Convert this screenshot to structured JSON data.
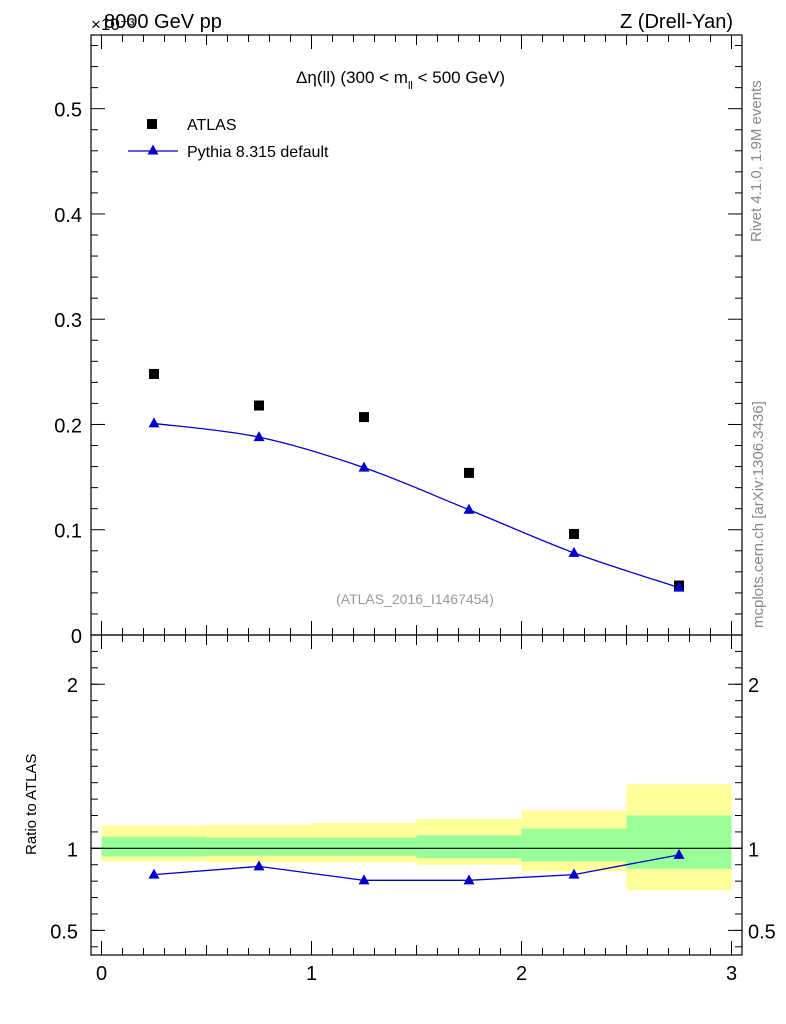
{
  "header": {
    "left_label": "8000 GeV pp",
    "right_label": "Z (Drell-Yan)",
    "multiplier": "×10⁻³"
  },
  "side": {
    "rivet": "Rivet 4.1.0,  1.9M events",
    "mcplots": "mcplots.cern.ch [arXiv:1306.3436]"
  },
  "chart_data": {
    "type": "scatter",
    "title_main": "Δη(ll) (300 < m",
    "title_sub": "ll",
    "title_tail": " < 500 GeV)",
    "watermark": "(ATLAS_2016_I1467454)",
    "x": [
      0.25,
      0.75,
      1.25,
      1.75,
      2.25,
      2.75
    ],
    "bin_edges": [
      0,
      0.5,
      1,
      1.5,
      2,
      2.5,
      3
    ],
    "xlim": [
      -0.05,
      3.05
    ],
    "xticks": [
      "0",
      "1",
      "2",
      "3"
    ],
    "ylim": [
      0,
      0.57
    ],
    "yticks": [
      "0",
      "0.1",
      "0.2",
      "0.3",
      "0.4",
      "0.5"
    ],
    "series": [
      {
        "name": "ATLAS",
        "marker": "square",
        "color": "#000000",
        "values": [
          0.248,
          0.218,
          0.207,
          0.154,
          0.096,
          0.047
        ]
      },
      {
        "name": "Pythia 8.315 default",
        "marker": "triangle",
        "color": "#0000cc",
        "values": [
          0.201,
          0.188,
          0.159,
          0.119,
          0.078,
          0.045
        ]
      }
    ],
    "ratio": {
      "ylabel": "Ratio to ATLAS",
      "ylim": [
        0.35,
        2.3
      ],
      "yticks": [
        "0.5",
        "1",
        "2"
      ],
      "values": [
        0.84,
        0.89,
        0.805,
        0.805,
        0.84,
        0.96
      ],
      "band_stat": [
        [
          0.95,
          1.07
        ],
        [
          0.955,
          1.065
        ],
        [
          0.955,
          1.065
        ],
        [
          0.94,
          1.08
        ],
        [
          0.92,
          1.12
        ],
        [
          0.875,
          1.2
        ]
      ],
      "band_total": [
        [
          0.92,
          1.14
        ],
        [
          0.915,
          1.145
        ],
        [
          0.915,
          1.155
        ],
        [
          0.9,
          1.18
        ],
        [
          0.86,
          1.23
        ],
        [
          0.745,
          1.39
        ]
      ]
    }
  }
}
